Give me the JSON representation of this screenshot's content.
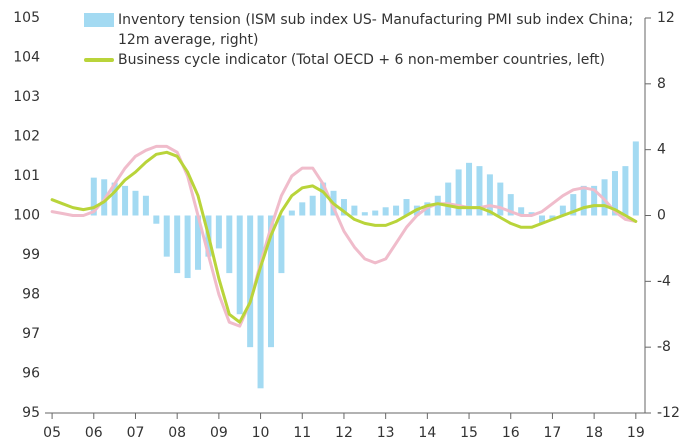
{
  "chart_data": {
    "type": "bar_line",
    "x": [
      2005,
      2005.25,
      2005.5,
      2005.75,
      2006,
      2006.25,
      2006.5,
      2006.75,
      2007,
      2007.25,
      2007.5,
      2007.75,
      2008,
      2008.25,
      2008.5,
      2008.75,
      2009,
      2009.25,
      2009.5,
      2009.75,
      2010,
      2010.25,
      2010.5,
      2010.75,
      2011,
      2011.25,
      2011.5,
      2011.75,
      2012,
      2012.25,
      2012.5,
      2012.75,
      2013,
      2013.25,
      2013.5,
      2013.75,
      2014,
      2014.25,
      2014.5,
      2014.75,
      2015,
      2015.25,
      2015.5,
      2015.75,
      2016,
      2016.25,
      2016.5,
      2016.75,
      2017,
      2017.25,
      2017.5,
      2017.75,
      2018,
      2018.25,
      2018.5,
      2018.75,
      2019
    ],
    "series": [
      {
        "name": "Inventory tension (ISM sub index US- Manufacturing PMI sub index China; 12m average, right)",
        "kind": "bar",
        "axis": "y2",
        "color": "#a3daf2",
        "values": [
          null,
          null,
          null,
          null,
          2.3,
          2.2,
          2.0,
          1.8,
          1.5,
          1.2,
          -0.5,
          -2.5,
          -3.5,
          -3.8,
          -3.3,
          -2.5,
          -2.0,
          -3.5,
          -6.0,
          -8.0,
          -10.5,
          -8.0,
          -3.5,
          0.3,
          0.8,
          1.2,
          2.0,
          1.5,
          1.0,
          0.6,
          0.2,
          0.3,
          0.5,
          0.6,
          1.0,
          0.6,
          0.8,
          1.2,
          2.0,
          2.8,
          3.2,
          3.0,
          2.5,
          2.0,
          1.3,
          0.5,
          0.2,
          -0.5,
          -0.3,
          0.6,
          1.3,
          1.8,
          1.8,
          2.2,
          2.7,
          3.0,
          4.5
        ]
      },
      {
        "kind": "line",
        "color": "#f0bccb",
        "values": [
          100.1,
          100.05,
          100.0,
          100.0,
          100.1,
          100.4,
          100.8,
          101.2,
          101.5,
          101.65,
          101.75,
          101.75,
          101.6,
          101.0,
          100.0,
          99.0,
          98.0,
          97.3,
          97.2,
          97.8,
          98.8,
          99.7,
          100.5,
          101.0,
          101.2,
          101.2,
          100.8,
          100.2,
          99.6,
          99.2,
          98.9,
          98.8,
          98.9,
          99.3,
          99.7,
          100.0,
          100.2,
          100.3,
          100.3,
          100.25,
          100.2,
          100.2,
          100.25,
          100.2,
          100.1,
          100.0,
          100.0,
          100.1,
          100.3,
          100.5,
          100.65,
          100.7,
          100.65,
          100.4,
          100.1,
          99.9,
          99.85
        ]
      },
      {
        "name": "Business cycle indicator  (Total OECD + 6 non-member countries, left)",
        "kind": "line",
        "color": "#b9d43a",
        "values": [
          100.4,
          100.3,
          100.2,
          100.15,
          100.2,
          100.35,
          100.6,
          100.9,
          101.1,
          101.35,
          101.55,
          101.6,
          101.5,
          101.1,
          100.5,
          99.5,
          98.4,
          97.5,
          97.3,
          97.8,
          98.7,
          99.5,
          100.1,
          100.5,
          100.7,
          100.75,
          100.6,
          100.3,
          100.1,
          99.9,
          99.8,
          99.75,
          99.75,
          99.85,
          100.0,
          100.15,
          100.25,
          100.3,
          100.25,
          100.2,
          100.2,
          100.2,
          100.1,
          99.95,
          99.8,
          99.7,
          99.7,
          99.8,
          99.9,
          100.0,
          100.1,
          100.2,
          100.25,
          100.25,
          100.15,
          100.0,
          99.85
        ]
      }
    ],
    "xlim": [
      2004.83,
      2019.22
    ],
    "xticks": [
      {
        "value": 2005,
        "label": "05"
      },
      {
        "value": 2006,
        "label": "06"
      },
      {
        "value": 2007,
        "label": "07"
      },
      {
        "value": 2008,
        "label": "08"
      },
      {
        "value": 2009,
        "label": "09"
      },
      {
        "value": 2010,
        "label": "10"
      },
      {
        "value": 2011,
        "label": "11"
      },
      {
        "value": 2012,
        "label": "12"
      },
      {
        "value": 2013,
        "label": "13"
      },
      {
        "value": 2014,
        "label": "14"
      },
      {
        "value": 2015,
        "label": "15"
      },
      {
        "value": 2016,
        "label": "16"
      },
      {
        "value": 2017,
        "label": "17"
      },
      {
        "value": 2018,
        "label": "18"
      },
      {
        "value": 2019,
        "label": "19"
      }
    ],
    "ylim": [
      95,
      105
    ],
    "yticks": [
      95,
      96,
      97,
      98,
      99,
      100,
      101,
      102,
      103,
      104,
      105
    ],
    "y2lim": [
      -12,
      12
    ],
    "y2ticks": [
      -12,
      -8,
      -4,
      0,
      4,
      8,
      12
    ]
  }
}
